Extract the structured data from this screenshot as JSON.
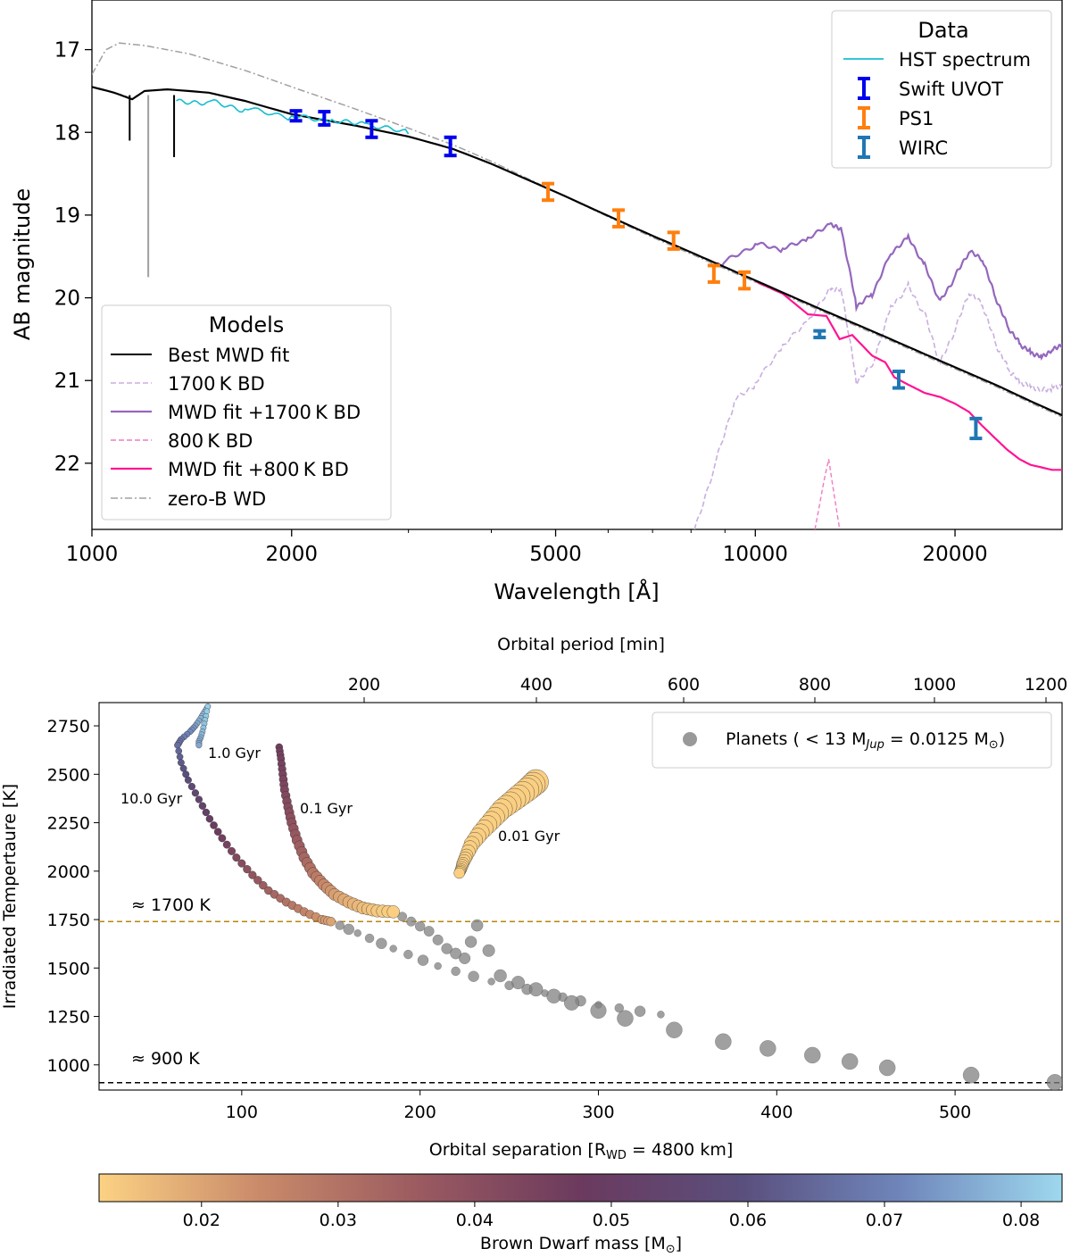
{
  "chart_data": [
    {
      "type": "line",
      "xscale": "log",
      "xlabel": "Wavelength [Å]",
      "ylabel": "AB magnitude",
      "xlim": [
        1000,
        29000
      ],
      "ylim": [
        22.8,
        16.4
      ],
      "xticks": [
        1000,
        2000,
        5000,
        10000,
        20000
      ],
      "xtick_labels": [
        "1000",
        "2000",
        "5000",
        "10000",
        "20000"
      ],
      "yticks": [
        17,
        18,
        19,
        20,
        21,
        22
      ],
      "ytick_labels": [
        "17",
        "18",
        "19",
        "20",
        "21",
        "22"
      ],
      "legend_data": {
        "title": "Data",
        "entries": [
          "HST spectrum",
          "Swift UVOT",
          "PS1",
          "WIRC"
        ]
      },
      "legend_models": {
        "title": "Models",
        "entries": [
          "Best MWD fit",
          "1700 K BD",
          "MWD fit +1700 K BD",
          "800 K BD",
          "MWD fit +800 K BD",
          "zero-B WD"
        ]
      },
      "colors": {
        "hst": "#17becf",
        "swift": "#0000ee",
        "ps1": "#ff7f0e",
        "wirc": "#1f77b4",
        "best": "#000000",
        "bd1700": "#c9aee0",
        "mwd1700": "#9467bd",
        "bd800": "#f07cc3",
        "mwd800": "#ff1493",
        "zerob": "#a0a0a0"
      },
      "series": [
        {
          "name": "Best MWD fit",
          "x": [
            1000,
            1080,
            1150,
            1200,
            1300,
            1500,
            1700,
            2000,
            2500,
            3000,
            3500,
            4000,
            5000,
            6000,
            7000,
            8000,
            9000,
            10000,
            12000,
            14000,
            16000,
            18000,
            20000,
            23000,
            26000,
            29000
          ],
          "y": [
            17.45,
            17.52,
            17.6,
            17.5,
            17.48,
            17.52,
            17.62,
            17.78,
            17.92,
            18.05,
            18.2,
            18.38,
            18.72,
            19.01,
            19.25,
            19.45,
            19.63,
            19.79,
            20.07,
            20.3,
            20.5,
            20.68,
            20.84,
            21.05,
            21.25,
            21.42
          ]
        },
        {
          "name": "zero-B WD",
          "x": [
            1000,
            1050,
            1100,
            1200,
            1400,
            1700,
            2000,
            2500,
            3000,
            3500,
            4000,
            5000,
            6000,
            7000,
            8000,
            9000,
            10000,
            12000,
            14000,
            16000,
            18000,
            20000,
            23000,
            26000,
            29000
          ],
          "y": [
            17.3,
            17.0,
            16.92,
            16.95,
            17.05,
            17.25,
            17.45,
            17.72,
            17.95,
            18.15,
            18.35,
            18.72,
            19.02,
            19.27,
            19.47,
            19.65,
            19.81,
            20.09,
            20.32,
            20.52,
            20.7,
            20.86,
            21.07,
            21.27,
            21.44
          ]
        },
        {
          "name": "HST spectrum",
          "x": [
            1340,
            1500,
            1700,
            2000,
            2300,
            2600,
            3000
          ],
          "y": [
            17.62,
            17.62,
            17.72,
            17.82,
            17.88,
            17.92,
            18.02
          ]
        },
        {
          "name": "MWD fit +1700 K BD",
          "x": [
            8500,
            9000,
            10000,
            11000,
            12000,
            13000,
            13500,
            14200,
            15000,
            16000,
            17000,
            18000,
            19000,
            20000,
            21000,
            22000,
            23000,
            24000,
            25000,
            26000,
            27000,
            28000,
            29000
          ],
          "y": [
            19.62,
            19.56,
            19.35,
            19.42,
            19.3,
            19.12,
            19.2,
            20.1,
            19.95,
            19.45,
            19.25,
            19.6,
            20.05,
            19.75,
            19.45,
            19.55,
            20.0,
            20.35,
            20.55,
            20.65,
            20.7,
            20.62,
            20.55
          ]
        },
        {
          "name": "1700 K BD",
          "x": [
            8100,
            8700,
            9300,
            10000,
            11000,
            12000,
            13000,
            13500,
            14200,
            15000,
            16000,
            17000,
            18000,
            19000,
            20000,
            21000,
            22000,
            23000,
            24000,
            25000,
            26000,
            27000,
            28000,
            29000
          ],
          "y": [
            22.8,
            22.0,
            21.25,
            21.05,
            20.6,
            20.3,
            19.9,
            19.92,
            21.0,
            20.8,
            20.1,
            19.85,
            20.2,
            20.8,
            20.4,
            19.95,
            20.1,
            20.55,
            20.85,
            21.0,
            21.05,
            21.1,
            21.08,
            21.05
          ]
        },
        {
          "name": "MWD fit +800 K BD",
          "x": [
            10000,
            11000,
            12000,
            12800,
            13400,
            14000,
            15000,
            15700,
            16200,
            17000,
            18000,
            19000,
            20000,
            21000,
            22000,
            23000,
            24000,
            25000,
            26000,
            27000,
            28000,
            29000
          ],
          "y": [
            19.8,
            19.95,
            20.2,
            20.22,
            20.5,
            20.45,
            20.7,
            20.78,
            20.96,
            21.05,
            21.15,
            21.2,
            21.28,
            21.38,
            21.55,
            21.7,
            21.84,
            21.95,
            22.02,
            22.05,
            22.08,
            22.08
          ]
        },
        {
          "name": "800 K BD",
          "x": [
            12300,
            12700,
            12900,
            13100,
            13400
          ],
          "y": [
            22.8,
            22.2,
            21.95,
            22.3,
            22.8
          ]
        }
      ],
      "points": [
        {
          "name": "Swift UVOT",
          "x": [
            2030,
            2240,
            2640,
            3470
          ],
          "y": [
            17.8,
            17.83,
            17.96,
            18.17
          ],
          "err": [
            0.06,
            0.08,
            0.1,
            0.11
          ]
        },
        {
          "name": "PS1",
          "x": [
            4870,
            6220,
            7530,
            8660,
            9630
          ],
          "y": [
            18.72,
            19.04,
            19.31,
            19.71,
            19.79
          ],
          "err": [
            0.1,
            0.1,
            0.1,
            0.1,
            0.1
          ]
        },
        {
          "name": "WIRC",
          "x": [
            12500,
            16450,
            21500
          ],
          "y": [
            20.44,
            20.99,
            21.58
          ],
          "err": [
            0.04,
            0.1,
            0.12
          ]
        }
      ]
    },
    {
      "type": "scatter",
      "xlabel": "Orbital separation [R",
      "xlabel_sub": "WD",
      "xlabel_tail": " = 4800 km]",
      "ylabel": "Irradiated Tempertaure [K]",
      "top_axis_label": "Orbital period [min]",
      "xlim": [
        20,
        560
      ],
      "ylim": [
        870,
        2870
      ],
      "xticks": [
        100,
        200,
        300,
        400,
        500
      ],
      "xtick_labels": [
        "100",
        "200",
        "300",
        "400",
        "500"
      ],
      "yticks": [
        1000,
        1250,
        1500,
        1750,
        2000,
        2250,
        2500,
        2750
      ],
      "ytick_labels": [
        "1000",
        "1250",
        "1500",
        "1750",
        "2000",
        "2250",
        "2500",
        "2750"
      ],
      "top_ticks": [
        200,
        400,
        600,
        800,
        1000,
        1200
      ],
      "top_tick_labels": [
        "200",
        "400",
        "600",
        "800",
        "1000",
        "1200"
      ],
      "legend": "Planets ( < 13 M",
      "legend_sub": "Jup",
      "legend_tail": " = 0.0125 M",
      "legend_sub2": "⊙",
      "legend_end": ")",
      "hlines": [
        {
          "label": "≈ 1700 K",
          "y": 1740,
          "color": "#b8860b"
        },
        {
          "label": "≈ 900 K",
          "y": 908,
          "color": "#000000"
        }
      ],
      "isochrones": [
        {
          "label": "10.0 Gyr",
          "x": [
            81,
            79,
            77,
            74,
            71,
            66,
            64,
            66,
            70,
            76,
            82,
            89,
            97,
            106,
            115,
            125,
            135,
            145,
            150
          ],
          "y": [
            2850,
            2820,
            2790,
            2750,
            2720,
            2680,
            2650,
            2560,
            2470,
            2370,
            2270,
            2170,
            2070,
            1980,
            1900,
            1840,
            1790,
            1750,
            1740
          ],
          "m": [
            0.082,
            0.08,
            0.078,
            0.075,
            0.072,
            0.068,
            0.066,
            0.062,
            0.058,
            0.054,
            0.05,
            0.046,
            0.042,
            0.038,
            0.034,
            0.03,
            0.026,
            0.022,
            0.02
          ]
        },
        {
          "label": "1.0 Gyr",
          "x": [
            81,
            80,
            79,
            78,
            77,
            76,
            76
          ],
          "y": [
            2850,
            2800,
            2760,
            2720,
            2690,
            2670,
            2650
          ],
          "m": [
            0.082,
            0.081,
            0.08,
            0.079,
            0.078,
            0.077,
            0.076
          ]
        },
        {
          "label": "0.1 Gyr",
          "x": [
            121,
            122,
            123,
            124,
            126,
            128,
            131,
            135,
            140,
            146,
            152,
            160,
            168,
            176,
            185
          ],
          "y": [
            2640,
            2580,
            2500,
            2420,
            2330,
            2250,
            2160,
            2070,
            1990,
            1930,
            1880,
            1840,
            1810,
            1795,
            1790
          ],
          "m": [
            0.046,
            0.045,
            0.044,
            0.043,
            0.041,
            0.039,
            0.036,
            0.033,
            0.029,
            0.025,
            0.021,
            0.018,
            0.016,
            0.014,
            0.013
          ]
        },
        {
          "label": "0.01 Gyr",
          "x": [
            265,
            260,
            253,
            246,
            240,
            234,
            229,
            226,
            224,
            223,
            222
          ],
          "y": [
            2460,
            2420,
            2370,
            2320,
            2260,
            2200,
            2140,
            2080,
            2040,
            2010,
            1990
          ],
          "m": [
            0.013,
            0.013,
            0.013,
            0.013,
            0.013,
            0.013,
            0.013,
            0.013,
            0.013,
            0.013,
            0.013
          ]
        }
      ],
      "planet_branches": [
        {
          "x": [
            150,
            165,
            185,
            210,
            240,
            270,
            300,
            335
          ],
          "y": [
            1740,
            1680,
            1600,
            1510,
            1430,
            1370,
            1310,
            1260
          ]
        },
        {
          "x": [
            185,
            195,
            205,
            215,
            225,
            232,
            245,
            265,
            285,
            315,
            370,
            420,
            462,
            556
          ],
          "y": [
            1790,
            1740,
            1690,
            1600,
            1550,
            1720,
            1460,
            1390,
            1320,
            1240,
            1120,
            1050,
            985,
            910
          ]
        }
      ],
      "colorbar": {
        "label": "Brown Dwarf mass [M",
        "label_sub": "⊙",
        "label_end": "]",
        "range": [
          0.0125,
          0.083
        ],
        "ticks": [
          0.02,
          0.03,
          0.04,
          0.05,
          0.06,
          0.07,
          0.08
        ],
        "tick_labels": [
          "0.02",
          "0.03",
          "0.04",
          "0.05",
          "0.06",
          "0.07",
          "0.08"
        ],
        "colors": [
          "#fcd283",
          "#c98a6a",
          "#9a5a60",
          "#6b3a5e",
          "#5a4f7d",
          "#6f86bb",
          "#9ed8ee"
        ]
      }
    }
  ]
}
